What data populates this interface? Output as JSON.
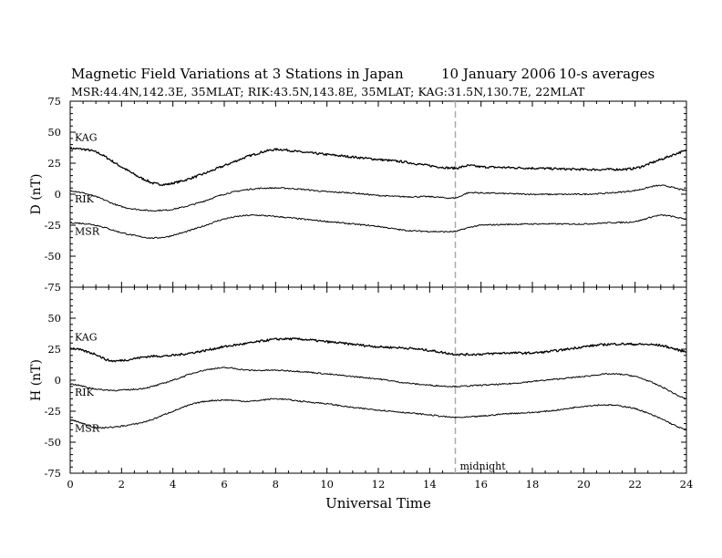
{
  "header": {
    "title": "Magnetic Field Variations at 3 Stations in Japan",
    "date": "10 January 2006",
    "averaging": "10-s averages",
    "stations_line": "MSR:44.4N,142.3E, 35MLAT;  RIK:43.5N,143.8E, 35MLAT;  KAG:31.5N,130.7E, 22MLAT"
  },
  "colors": {
    "trace": "#000000",
    "midnight_line": "#aaaaaa",
    "axes": "#000000"
  },
  "chart_data": [
    {
      "type": "line",
      "panel": "D",
      "ylabel": "D (nT)",
      "ylim": [
        -75,
        75
      ],
      "yticks": [
        -75,
        -50,
        -25,
        0,
        25,
        50,
        75
      ],
      "xlim": [
        0,
        24
      ],
      "xticks": [
        0,
        2,
        4,
        6,
        8,
        10,
        12,
        14,
        16,
        18,
        20,
        22,
        24
      ],
      "series": [
        {
          "name": "KAG",
          "x": [
            0,
            1,
            2,
            3,
            3.5,
            4,
            5,
            6,
            7,
            8,
            9,
            10,
            11,
            12,
            13,
            14,
            15,
            15.5,
            16,
            18,
            20,
            21,
            22,
            23,
            24
          ],
          "values": [
            37,
            34,
            22,
            11,
            8,
            9,
            15,
            23,
            31,
            36,
            34,
            32,
            30,
            28,
            26,
            23,
            21,
            23,
            22,
            21,
            20,
            20,
            21,
            28,
            35
          ]
        },
        {
          "name": "RIK",
          "x": [
            0,
            1,
            2,
            3,
            3.5,
            4,
            5,
            6,
            7,
            8,
            9,
            10,
            11,
            12,
            13,
            14,
            15,
            15.5,
            16,
            18,
            20,
            21,
            22,
            23,
            24
          ],
          "values": [
            3,
            -2,
            -10,
            -13,
            -13,
            -12,
            -7,
            0,
            4,
            5,
            4,
            2,
            1,
            -1,
            -2,
            -2,
            -3,
            1,
            1,
            0,
            0,
            1,
            3,
            7,
            3
          ]
        },
        {
          "name": "MSR",
          "x": [
            0,
            1,
            2,
            3,
            3.5,
            4,
            5,
            6,
            7,
            8,
            9,
            10,
            11,
            12,
            13,
            14,
            15,
            15.5,
            16,
            18,
            20,
            21,
            22,
            23,
            24
          ],
          "values": [
            -23,
            -25,
            -31,
            -35,
            -35,
            -33,
            -27,
            -20,
            -17,
            -18,
            -20,
            -22,
            -24,
            -26,
            -29,
            -30,
            -30,
            -27,
            -25,
            -24,
            -24,
            -23,
            -22,
            -17,
            -20
          ]
        }
      ],
      "annotations": {
        "midnight_x": 15
      }
    },
    {
      "type": "line",
      "panel": "H",
      "ylabel": "H (nT)",
      "xlabel": "Universal Time",
      "ylim": [
        -75,
        75
      ],
      "yticks": [
        -75,
        -50,
        -25,
        0,
        25,
        50,
        75
      ],
      "xlim": [
        0,
        24
      ],
      "xticks": [
        0,
        2,
        4,
        6,
        8,
        10,
        12,
        14,
        16,
        18,
        20,
        22,
        24
      ],
      "series": [
        {
          "name": "KAG",
          "x": [
            0,
            1,
            1.5,
            2,
            3,
            4,
            5,
            6,
            7,
            8,
            9,
            10,
            11,
            12,
            13,
            14,
            15,
            16,
            17,
            18,
            19,
            20,
            21,
            22,
            23,
            24
          ],
          "values": [
            26,
            21,
            16,
            16,
            19,
            20,
            23,
            27,
            30,
            33,
            33,
            31,
            29,
            27,
            26,
            24,
            21,
            21,
            22,
            22,
            24,
            27,
            29,
            29,
            28,
            23
          ]
        },
        {
          "name": "RIK",
          "x": [
            0,
            1,
            1.5,
            2,
            3,
            4,
            5,
            6,
            7,
            8,
            9,
            10,
            11,
            12,
            13,
            14,
            15,
            16,
            17,
            18,
            19,
            20,
            21,
            22,
            23,
            24
          ],
          "values": [
            -3,
            -7,
            -8,
            -8,
            -6,
            0,
            7,
            10,
            8,
            8,
            7,
            5,
            3,
            1,
            -2,
            -4,
            -5,
            -4,
            -3,
            -1,
            1,
            3,
            5,
            3,
            -5,
            -15
          ]
        },
        {
          "name": "MSR",
          "x": [
            0,
            1,
            1.5,
            2,
            3,
            4,
            5,
            6,
            7,
            8,
            9,
            10,
            11,
            12,
            13,
            14,
            15,
            16,
            17,
            18,
            19,
            20,
            21,
            22,
            23,
            24
          ],
          "values": [
            -32,
            -38,
            -38,
            -37,
            -33,
            -25,
            -18,
            -16,
            -17,
            -15,
            -17,
            -19,
            -22,
            -24,
            -26,
            -28,
            -30,
            -29,
            -27,
            -26,
            -24,
            -21,
            -20,
            -23,
            -31,
            -40
          ]
        }
      ],
      "annotations": {
        "midnight_x": 15,
        "midnight_label": "midnight"
      }
    }
  ]
}
